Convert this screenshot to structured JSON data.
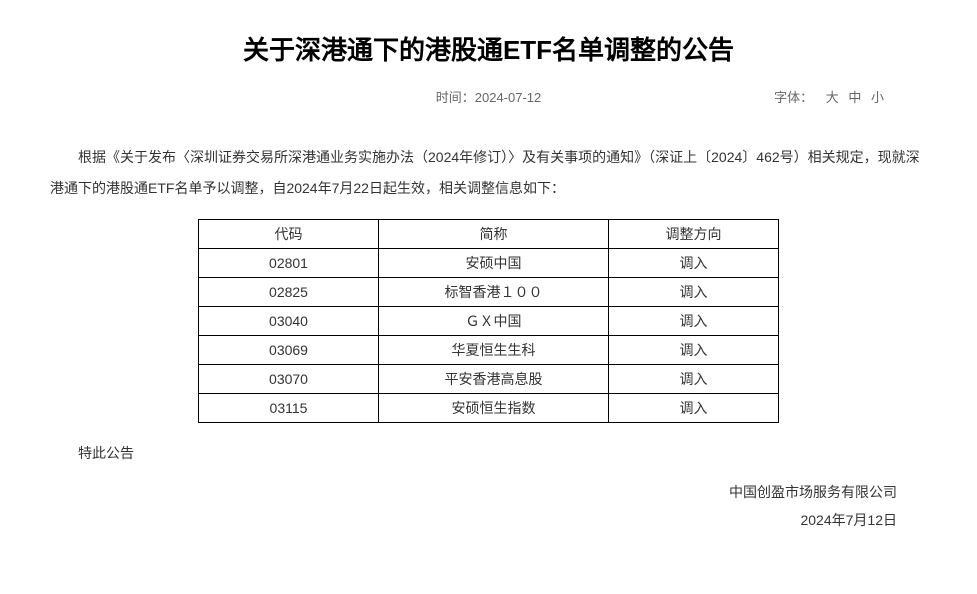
{
  "title": "关于深港通下的港股通ETF名单调整的公告",
  "meta": {
    "time_label": "时间：",
    "time_value": "2024-07-12",
    "font_label": "字体：",
    "font_large": "大",
    "font_medium": "中",
    "font_small": "小"
  },
  "paragraph": "根据《关于发布〈深圳证券交易所深港通业务实施办法（2024年修订）〉及有关事项的通知》（深证上〔2024〕462号）相关规定，现就深港通下的港股通ETF名单予以调整，自2024年7月22日起生效，相关调整信息如下：",
  "table": {
    "headers": {
      "code": "代码",
      "name": "简称",
      "direction": "调整方向"
    },
    "rows": [
      {
        "code": "02801",
        "name": "安硕中国",
        "direction": "调入"
      },
      {
        "code": "02825",
        "name": "标智香港１００",
        "direction": "调入"
      },
      {
        "code": "03040",
        "name": "ＧＸ中国",
        "direction": "调入"
      },
      {
        "code": "03069",
        "name": "华夏恒生生科",
        "direction": "调入"
      },
      {
        "code": "03070",
        "name": "平安香港高息股",
        "direction": "调入"
      },
      {
        "code": "03115",
        "name": "安硕恒生指数",
        "direction": "调入"
      }
    ]
  },
  "closing": "特此公告",
  "signature": {
    "org": "中国创盈市场服务有限公司",
    "date": "2024年7月12日"
  }
}
